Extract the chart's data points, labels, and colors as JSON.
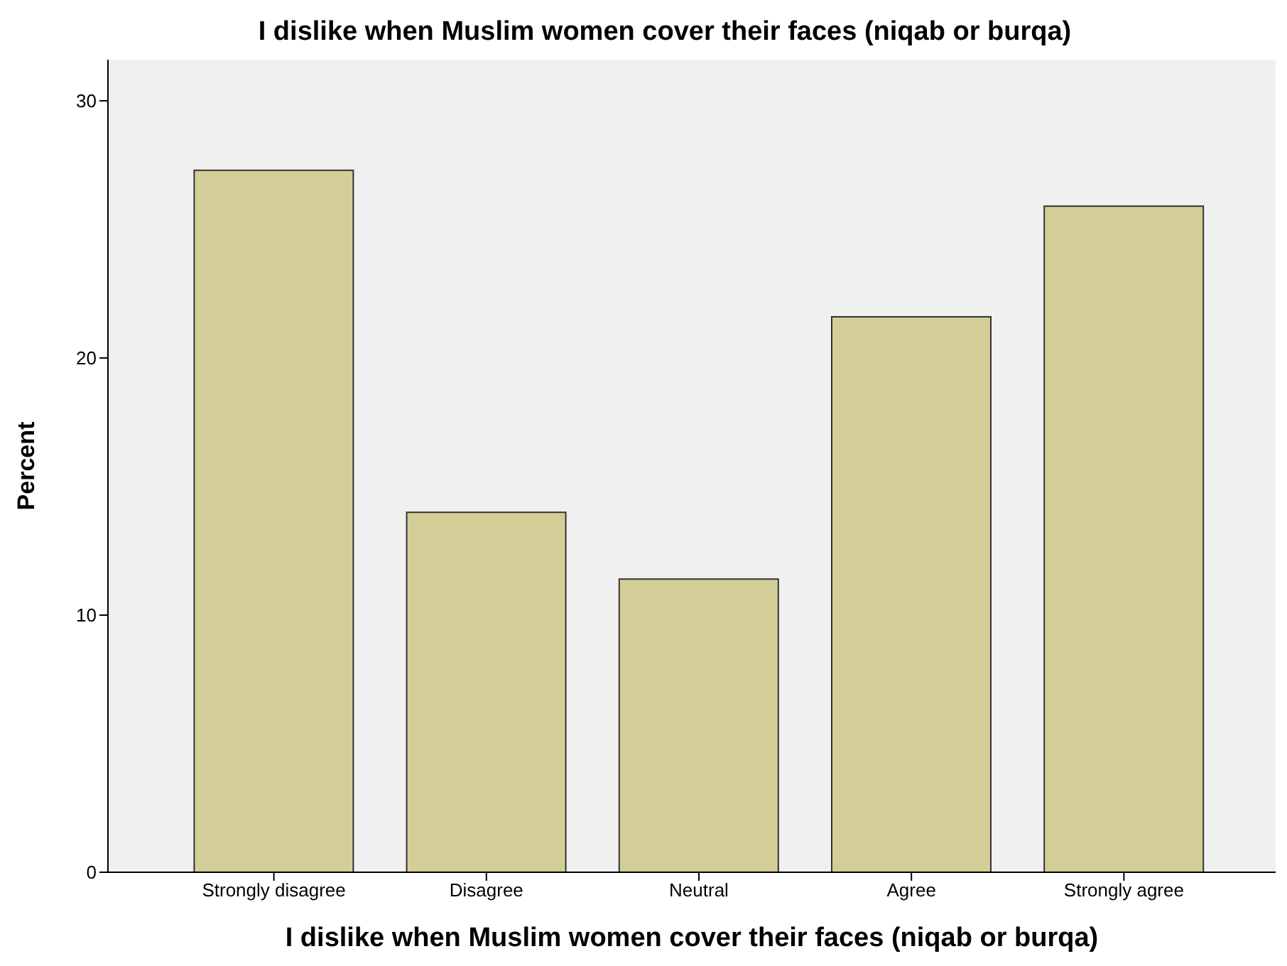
{
  "chart_data": {
    "type": "bar",
    "title": "I dislike when Muslim women cover their faces (niqab or burqa)",
    "xlabel": "I dislike when Muslim women cover their faces (niqab or burqa)",
    "ylabel": "Percent",
    "categories": [
      "Strongly disagree",
      "Disagree",
      "Neutral",
      "Agree",
      "Strongly agree"
    ],
    "values": [
      27.3,
      14.0,
      11.4,
      21.6,
      25.9
    ],
    "color": "#d3ce97",
    "ylim": [
      0,
      31.6
    ],
    "yticks": [
      0,
      10,
      20,
      30
    ],
    "grid": false
  }
}
